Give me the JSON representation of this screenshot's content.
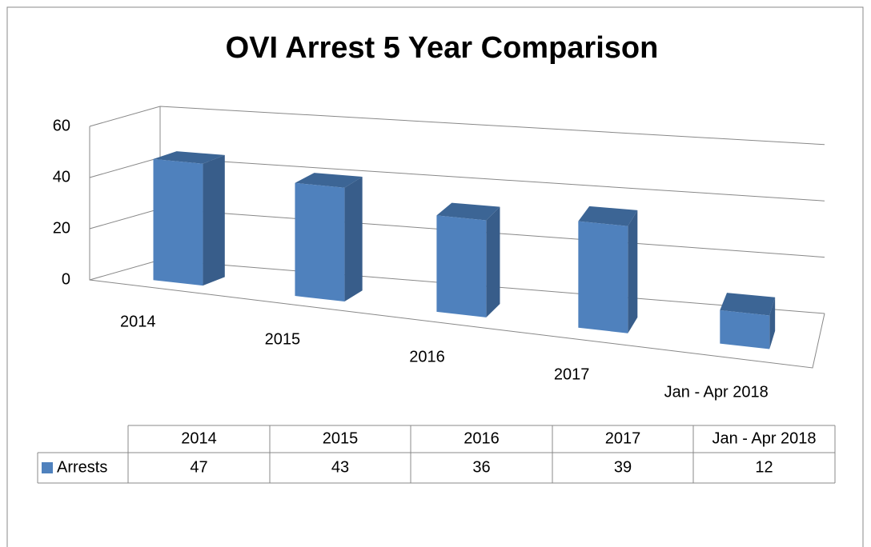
{
  "chart_data": {
    "type": "bar3d",
    "title": "OVI Arrest 5 Year Comparison",
    "categories": [
      "2014",
      "2015",
      "2016",
      "2017",
      "Jan - Apr 2018"
    ],
    "series": [
      {
        "name": "Arrests",
        "color": "#4f81bd",
        "values": [
          47,
          43,
          36,
          39,
          12
        ]
      }
    ],
    "ylim": [
      0,
      60
    ],
    "yticks": [
      0,
      20,
      40,
      60
    ],
    "grid": true,
    "legend": "table"
  }
}
